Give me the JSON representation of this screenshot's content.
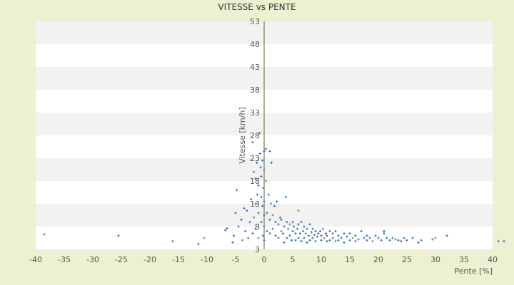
{
  "chart_data": {
    "type": "scatter",
    "title": "VITESSE vs PENTE",
    "xlabel": "Pente [%]",
    "ylabel": "Vitesse [km/h]",
    "xlim": [
      -40,
      40
    ],
    "ylim": [
      3,
      53
    ],
    "xticks": [
      -40,
      -35,
      -30,
      -25,
      -20,
      -15,
      -10,
      -5,
      0,
      5,
      10,
      15,
      20,
      25,
      30,
      35,
      40
    ],
    "yticks": [
      3,
      8,
      13,
      18,
      23,
      28,
      33,
      38,
      43,
      48,
      53
    ],
    "grid": "alternating horizontal bands",
    "colors": {
      "page_background": "#ebf1d1",
      "plot_band_light": "#ffffff",
      "plot_band_dark": "#f2f2f2",
      "y_axis_line": "#556b2f",
      "point": "#2f6fb5",
      "point_alt": "#8a8a3a"
    },
    "series": [
      {
        "points": [
          [
            -38.5,
            6.3
          ],
          [
            -25.5,
            6.0
          ],
          [
            -16,
            4.8
          ],
          [
            -11.5,
            4.2
          ],
          [
            -10.5,
            5.5
          ],
          [
            -6.8,
            7.2
          ],
          [
            -6.5,
            7.6
          ],
          [
            -5.5,
            4.5
          ],
          [
            -5.3,
            6.0
          ],
          [
            -5.0,
            11.0
          ],
          [
            -4.8,
            16.0
          ],
          [
            -4.5,
            8.0
          ],
          [
            -4.0,
            9.5
          ],
          [
            -3.8,
            5.0
          ],
          [
            -3.5,
            12.0
          ],
          [
            -3.3,
            7.0
          ],
          [
            -3.0,
            11.5
          ],
          [
            -2.8,
            5.5
          ],
          [
            -2.5,
            9.0
          ],
          [
            -2.3,
            14.0
          ],
          [
            -2.0,
            26.5
          ],
          [
            -2.0,
            6.5
          ],
          [
            -1.8,
            10.0
          ],
          [
            -1.8,
            20.0
          ],
          [
            -1.5,
            13.0
          ],
          [
            -1.5,
            18.5
          ],
          [
            -1.5,
            7.5
          ],
          [
            -1.3,
            22.0
          ],
          [
            -1.2,
            15.0
          ],
          [
            -1.0,
            11.0
          ],
          [
            -1.0,
            17.0
          ],
          [
            -1.0,
            5.5
          ],
          [
            -0.8,
            28.5
          ],
          [
            -0.7,
            24.0
          ],
          [
            -0.6,
            21.0
          ],
          [
            -0.5,
            19.0
          ],
          [
            -0.5,
            14.5
          ],
          [
            -0.5,
            9.0
          ],
          [
            -0.3,
            22.5
          ],
          [
            -0.3,
            12.5
          ],
          [
            -0.2,
            16.5
          ],
          [
            -0.2,
            6.0
          ],
          [
            0.0,
            24.5
          ],
          [
            0.0,
            20.5
          ],
          [
            0.0,
            13.5
          ],
          [
            0.0,
            10.5
          ],
          [
            0.0,
            8.0
          ],
          [
            0.0,
            5.0
          ],
          [
            0.3,
            25.0
          ],
          [
            0.3,
            18.0
          ],
          [
            0.5,
            11.0
          ],
          [
            0.5,
            7.0
          ],
          [
            0.8,
            15.0
          ],
          [
            1.0,
            24.5
          ],
          [
            1.0,
            9.5
          ],
          [
            1.0,
            6.5
          ],
          [
            1.2,
            13.0
          ],
          [
            1.3,
            22.0
          ],
          [
            1.5,
            10.5
          ],
          [
            1.5,
            7.5
          ],
          [
            1.8,
            12.5
          ],
          [
            2.0,
            9.0
          ],
          [
            2.0,
            6.0
          ],
          [
            2.2,
            13.5
          ],
          [
            2.5,
            8.5
          ],
          [
            2.5,
            5.5
          ],
          [
            2.8,
            10.0
          ],
          [
            3.0,
            7.0
          ],
          [
            3.0,
            9.5
          ],
          [
            3.3,
            6.5
          ],
          [
            3.5,
            8.0
          ],
          [
            3.5,
            4.5
          ],
          [
            3.8,
            14.5
          ],
          [
            4.0,
            9.0
          ],
          [
            4.0,
            5.5
          ],
          [
            4.2,
            7.5
          ],
          [
            4.5,
            8.5
          ],
          [
            4.5,
            6.0
          ],
          [
            4.8,
            5.0
          ],
          [
            5.0,
            9.0
          ],
          [
            5.0,
            7.0
          ],
          [
            5.2,
            8.0
          ],
          [
            5.5,
            6.5
          ],
          [
            5.5,
            5.0
          ],
          [
            5.8,
            7.5
          ],
          [
            6.0,
            11.5
          ],
          [
            6.0,
            8.5
          ],
          [
            6.0,
            5.5
          ],
          [
            6.3,
            6.5
          ],
          [
            6.5,
            9.0
          ],
          [
            6.5,
            4.8
          ],
          [
            6.8,
            7.0
          ],
          [
            7.0,
            8.0
          ],
          [
            7.0,
            5.5
          ],
          [
            7.3,
            6.5
          ],
          [
            7.5,
            7.5
          ],
          [
            7.5,
            4.5
          ],
          [
            7.8,
            6.0
          ],
          [
            8.0,
            8.5
          ],
          [
            8.0,
            5.0
          ],
          [
            8.3,
            6.8
          ],
          [
            8.5,
            7.5
          ],
          [
            8.5,
            5.5
          ],
          [
            8.8,
            6.2
          ],
          [
            9.0,
            7.0
          ],
          [
            9.0,
            4.8
          ],
          [
            9.3,
            5.8
          ],
          [
            9.5,
            6.5
          ],
          [
            9.8,
            7.0
          ],
          [
            10.0,
            5.0
          ],
          [
            10.0,
            6.0
          ],
          [
            10.3,
            7.5
          ],
          [
            10.5,
            5.5
          ],
          [
            10.8,
            6.5
          ],
          [
            11.0,
            4.8
          ],
          [
            11.0,
            6.0
          ],
          [
            11.5,
            7.0
          ],
          [
            11.5,
            5.0
          ],
          [
            12.0,
            6.5
          ],
          [
            12.0,
            5.5
          ],
          [
            12.5,
            7.0
          ],
          [
            12.5,
            4.8
          ],
          [
            13.0,
            6.0
          ],
          [
            13.0,
            5.0
          ],
          [
            13.5,
            5.5
          ],
          [
            14.0,
            6.5
          ],
          [
            14.0,
            4.5
          ],
          [
            14.5,
            5.8
          ],
          [
            15.0,
            5.0
          ],
          [
            15.0,
            6.5
          ],
          [
            15.5,
            5.5
          ],
          [
            16.0,
            4.8
          ],
          [
            16.0,
            6.0
          ],
          [
            16.5,
            5.2
          ],
          [
            17.0,
            7.0
          ],
          [
            17.5,
            5.5
          ],
          [
            18.0,
            5.0
          ],
          [
            18.0,
            6.0
          ],
          [
            18.5,
            5.5
          ],
          [
            19.0,
            4.8
          ],
          [
            19.5,
            6.0
          ],
          [
            20.0,
            5.5
          ],
          [
            20.5,
            5.0
          ],
          [
            21.0,
            6.5
          ],
          [
            21.0,
            7.0
          ],
          [
            21.5,
            5.5
          ],
          [
            22.0,
            5.0
          ],
          [
            22.5,
            5.5
          ],
          [
            23.0,
            5.2
          ],
          [
            23.5,
            5.0
          ],
          [
            24.0,
            4.8
          ],
          [
            24.5,
            5.5
          ],
          [
            25.0,
            5.0
          ],
          [
            26.0,
            5.5
          ],
          [
            27.0,
            4.5
          ],
          [
            27.5,
            5.0
          ],
          [
            29.5,
            5.2
          ],
          [
            30.0,
            5.5
          ],
          [
            32.0,
            6.0
          ],
          [
            41.0,
            4.8
          ],
          [
            42.0,
            4.8
          ]
        ]
      }
    ]
  }
}
